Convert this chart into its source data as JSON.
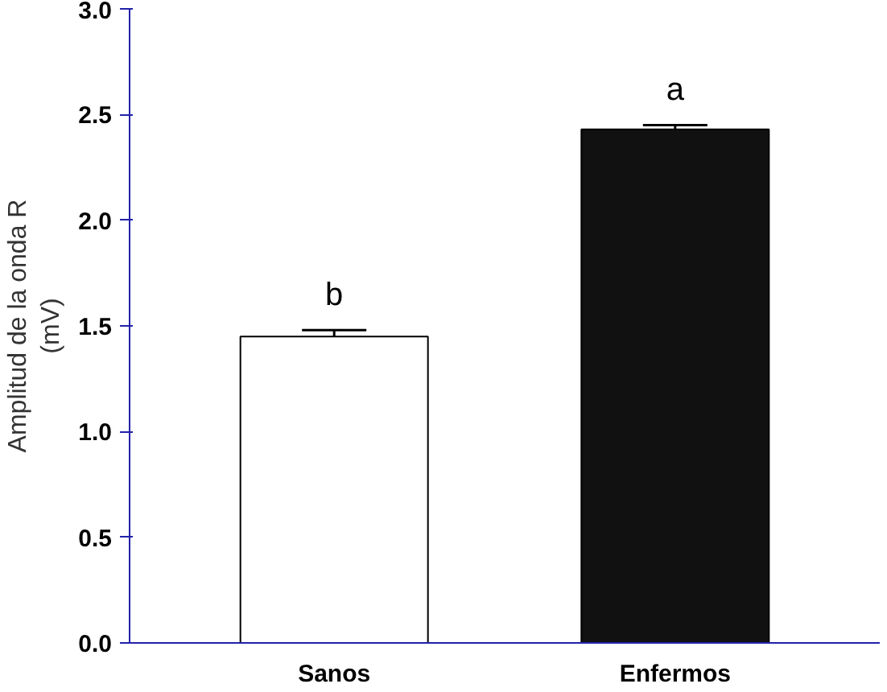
{
  "chart_data": {
    "type": "bar",
    "ylabel": "Amplitud de la onda R\n(mV)",
    "categories": [
      "Sanos",
      "Enfermos"
    ],
    "values": [
      1.45,
      2.43
    ],
    "colors": [
      "#ffffff",
      "#111111"
    ],
    "errors": [
      0.03,
      0.02
    ],
    "ylim": [
      0,
      3.0
    ],
    "yticks": [
      {
        "value": 0,
        "label": "0.0"
      },
      {
        "value": 0.5,
        "label": "0.5"
      },
      {
        "value": 1,
        "label": "1.0"
      },
      {
        "value": 1.5,
        "label": "1.5"
      },
      {
        "value": 2,
        "label": "2.0"
      },
      {
        "value": 2.5,
        "label": "2.5"
      },
      {
        "value": 3,
        "label": "3.0"
      }
    ],
    "annotations": [
      "b",
      "a"
    ],
    "grid": false
  }
}
